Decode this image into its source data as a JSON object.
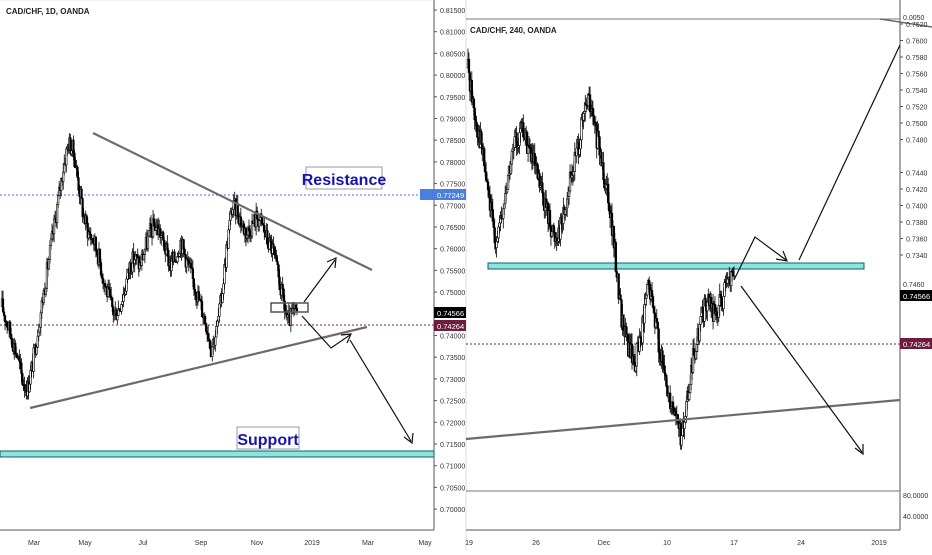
{
  "left_panel": {
    "title": "CAD/CHF, 1D, OANDA",
    "y_ticks": [
      "0.81500",
      "0.81000",
      "0.80500",
      "0.80000",
      "0.79500",
      "0.79000",
      "0.78500",
      "0.78000",
      "0.77500",
      "0.77000",
      "0.76500",
      "0.76000",
      "0.75500",
      "0.75000",
      "0.74500",
      "0.74000",
      "0.73500",
      "0.73000",
      "0.72500",
      "0.72000",
      "0.71500",
      "0.71000",
      "0.70500",
      "0.70000"
    ],
    "x_ticks": [
      "Mar",
      "May",
      "Jul",
      "Sep",
      "Nov",
      "2019",
      "Mar",
      "May"
    ],
    "price_labels": {
      "resistance_level": "0.77249",
      "current": "0.74566",
      "alt_level": "0.74264"
    },
    "annotations": {
      "resistance": "Resistance",
      "support": "Support"
    }
  },
  "right_panel": {
    "title": "CAD/CHF, 240, OANDA",
    "y_ticks": [
      "0.7620",
      "0.7600",
      "0.7580",
      "0.7560",
      "0.7540",
      "0.7520",
      "0.7500",
      "0.7480",
      "0.7440",
      "0.7420",
      "0.7400",
      "0.7380",
      "0.7360",
      "0.7340"
    ],
    "extra_ticks": [
      "0.0050",
      "80.0000",
      "40.0000"
    ],
    "partial_tick": "0.7460",
    "x_ticks": [
      "19",
      "26",
      "Dec",
      "10",
      "17",
      "24",
      "2019"
    ],
    "price_labels": {
      "current": "0.74566",
      "alt_level": "0.74264"
    }
  },
  "colors": {
    "bull": "#ffffff",
    "bear": "#000000",
    "trendline": "#6b6b6b",
    "resistance_dash": "#3f6fd8",
    "level_dash": "#7a1f3d",
    "zone_fill": "#8fe3df",
    "zone_border": "#0f5f6e",
    "annotation_text": "#1a12b0",
    "resistance_label_bg": "#4a7fe0",
    "alt_label_bg": "#6e1d3e"
  },
  "chart_data": [
    {
      "type": "candlestick",
      "title": "CAD/CHF, 1D, OANDA",
      "ylim": [
        0.6965,
        0.8185
      ],
      "x_range": [
        "Feb 2018",
        "May 2019"
      ],
      "series": [
        {
          "values": [
            0.746,
            0.742,
            0.738,
            0.734,
            0.728,
            0.726,
            0.732,
            0.74,
            0.748,
            0.756,
            0.764,
            0.772,
            0.78,
            0.786,
            0.784,
            0.776,
            0.768,
            0.764,
            0.762,
            0.758,
            0.752,
            0.748,
            0.744,
            0.746,
            0.75,
            0.756,
            0.758,
            0.756,
            0.76,
            0.764,
            0.766,
            0.764,
            0.76,
            0.756,
            0.758,
            0.762,
            0.758,
            0.754,
            0.75,
            0.746,
            0.742,
            0.736,
            0.74,
            0.748,
            0.76,
            0.77,
            0.77,
            0.766,
            0.764,
            0.766,
            0.768,
            0.766,
            0.762,
            0.76,
            0.754,
            0.748,
            0.742,
            0.744,
            0.745
          ]
        }
      ],
      "levels": {
        "resistance_level": 0.77249,
        "current": 0.74566,
        "alt_level": 0.74264
      }
    },
    {
      "type": "candlestick",
      "title": "CAD/CHF, 240, OANDA",
      "ylim": [
        0.7328,
        0.7628
      ],
      "x_range": [
        "Nov 19 2018",
        "Jan 2019"
      ],
      "series": [
        {
          "values": [
            0.76,
            0.757,
            0.755,
            0.752,
            0.749,
            0.75,
            0.753,
            0.755,
            0.756,
            0.755,
            0.7535,
            0.752,
            0.7505,
            0.749,
            0.75,
            0.752,
            0.754,
            0.756,
            0.758,
            0.756,
            0.754,
            0.752,
            0.748,
            0.744,
            0.742,
            0.741,
            0.743,
            0.746,
            0.744,
            0.741,
            0.739,
            0.738,
            0.736,
            0.739,
            0.742,
            0.744,
            0.745,
            0.744,
            0.745,
            0.746,
            0.747
          ]
        }
      ],
      "levels": {
        "current": 0.74566,
        "alt_level": 0.74264
      }
    }
  ]
}
